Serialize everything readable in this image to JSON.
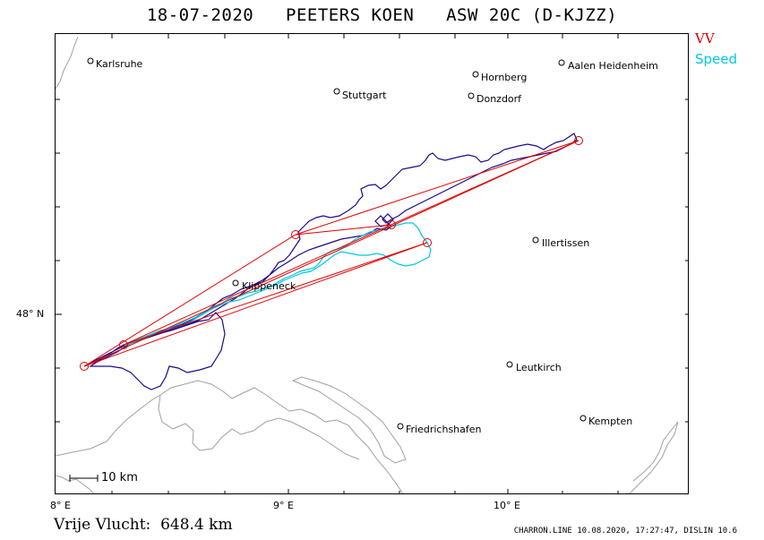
{
  "header": {
    "title": "18-07-2020   PEETERS KOEN   ASW 20C (D-KJZZ)"
  },
  "legend": {
    "vv_label": "VV",
    "vv_color": "#e00000",
    "speed_label": "Speed",
    "speed_color": "#00c8e6",
    "track_color": "#1a0a8c",
    "border_color": "#a0a0a0"
  },
  "map": {
    "cities": [
      {
        "name": "Karlsruhe"
      },
      {
        "name": "Hornberg"
      },
      {
        "name": "Aalen Heidenheim"
      },
      {
        "name": "Stuttgart"
      },
      {
        "name": "Donzdorf"
      },
      {
        "name": "Illertissen"
      },
      {
        "name": "Klippeneck"
      },
      {
        "name": "Leutkirch"
      },
      {
        "name": "Friedrichshafen"
      },
      {
        "name": "Kempten"
      }
    ],
    "axes": {
      "lat_label": "48° N",
      "lon_labels": [
        "8° E",
        "9° E",
        "10° E"
      ]
    },
    "scale_label": "10 km"
  },
  "summary": {
    "free_flight": "Vrije Vlucht:  648.4 km"
  },
  "footer": {
    "text": "CHARRON.LINE 10.08.2020, 17:27:47, DISLIN 10.6"
  }
}
